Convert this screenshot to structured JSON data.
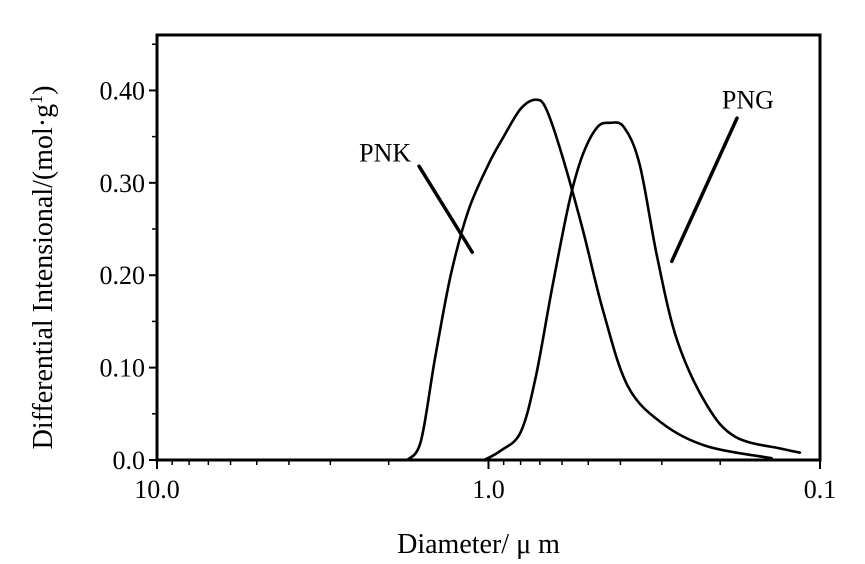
{
  "chart_data": {
    "type": "line",
    "xlabel": "Diameter/ μ m",
    "ylabel": "Differential Intensional/(mol·g",
    "ylabel_sup": "1",
    "ylabel_close": ")",
    "x_scale": "log-reversed",
    "xlim": [
      10.0,
      0.1
    ],
    "ylim": [
      0.0,
      0.46
    ],
    "x_ticks": [
      {
        "value": 10.0,
        "label": "10.0"
      },
      {
        "value": 1.0,
        "label": "1.0"
      },
      {
        "value": 0.1,
        "label": "0.1"
      }
    ],
    "y_ticks": [
      {
        "value": 0.0,
        "label": "0.0"
      },
      {
        "value": 0.1,
        "label": "0.10"
      },
      {
        "value": 0.2,
        "label": "0.20"
      },
      {
        "value": 0.3,
        "label": "0.30"
      },
      {
        "value": 0.4,
        "label": "0.40"
      }
    ],
    "grid": false,
    "series": [
      {
        "name": "PNK",
        "color": "#000000",
        "x": [
          1.76,
          1.6,
          1.45,
          1.3,
          1.15,
          1.0,
          0.9,
          0.8,
          0.72,
          0.67,
          0.6,
          0.52,
          0.45,
          0.38,
          0.3,
          0.22,
          0.14
        ],
        "y": [
          0.0,
          0.02,
          0.11,
          0.2,
          0.27,
          0.32,
          0.35,
          0.38,
          0.39,
          0.38,
          0.33,
          0.25,
          0.16,
          0.08,
          0.04,
          0.015,
          0.002
        ]
      },
      {
        "name": "PNG",
        "color": "#000000",
        "x": [
          1.03,
          0.92,
          0.8,
          0.72,
          0.64,
          0.57,
          0.52,
          0.47,
          0.43,
          0.39,
          0.35,
          0.31,
          0.27,
          0.22,
          0.18,
          0.13,
          0.115
        ],
        "y": [
          0.0,
          0.01,
          0.03,
          0.09,
          0.19,
          0.28,
          0.33,
          0.36,
          0.365,
          0.36,
          0.32,
          0.22,
          0.13,
          0.06,
          0.025,
          0.012,
          0.008
        ]
      }
    ],
    "annotations": [
      {
        "text": "PNK",
        "series": "PNK",
        "text_at": [
          2.05,
          0.333
        ],
        "line_from": [
          1.62,
          0.318
        ],
        "line_to": [
          1.12,
          0.225
        ]
      },
      {
        "text": "PNG",
        "series": "PNG",
        "text_at": [
          0.165,
          0.39
        ],
        "line_from": [
          0.178,
          0.37
        ],
        "line_to": [
          0.28,
          0.215
        ]
      }
    ]
  }
}
